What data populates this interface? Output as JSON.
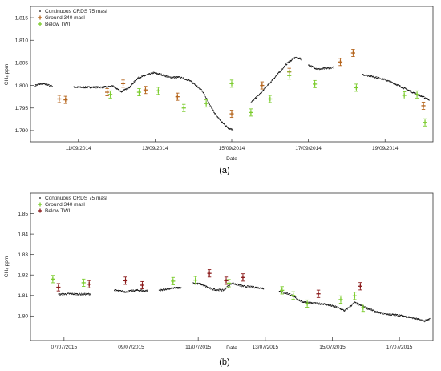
{
  "chart_data": [
    {
      "type": "scatter",
      "caption": "(a)",
      "xlabel": "Date",
      "ylabel": "CH₄ ppm",
      "x_range": [
        "2014-09-09T18:00",
        "2014-09-20T06:00"
      ],
      "ylim": [
        1.7875,
        1.8175
      ],
      "x_ticks": [
        "11/09/2014",
        "13/09/2014",
        "15/09/2014",
        "17/09/2014",
        "19/09/2014"
      ],
      "y_ticks": [
        1.79,
        1.795,
        1.8,
        1.805,
        1.81,
        1.815
      ],
      "y_tick_labels": [
        "1.790",
        "1.795",
        "1.800",
        "1.805",
        "1.810",
        "1.815"
      ],
      "grid": false,
      "legend_position": "top-left",
      "series": [
        {
          "name": "Continuous CRDS 75 masl",
          "color": "#111111",
          "style": "dense-points",
          "segments": [
            [
              [
                "2014-09-09T21:00",
                1.8
              ],
              [
                "2014-09-10T01:00",
                1.8004
              ],
              [
                "2014-09-10T05:00",
                1.8001
              ],
              [
                "2014-09-10T08:00",
                1.7998
              ]
            ],
            [
              [
                "2014-09-10T21:00",
                1.7996
              ],
              [
                "2014-09-11T08:00",
                1.7996
              ],
              [
                "2014-09-11T15:00",
                1.7996
              ],
              [
                "2014-09-11T22:00",
                1.7998
              ],
              [
                "2014-09-12T03:00",
                1.7986
              ],
              [
                "2014-09-12T08:00",
                1.7996
              ],
              [
                "2014-09-12T13:00",
                1.8016
              ],
              [
                "2014-09-12T18:00",
                1.8022
              ],
              [
                "2014-09-12T23:00",
                1.8028
              ],
              [
                "2014-09-13T04:00",
                1.8024
              ],
              [
                "2014-09-13T09:00",
                1.8018
              ],
              [
                "2014-09-13T15:00",
                1.8018
              ],
              [
                "2014-09-13T21:00",
                1.8012
              ],
              [
                "2014-09-14T02:00",
                1.8
              ],
              [
                "2014-09-14T06:00",
                1.7986
              ],
              [
                "2014-09-14T10:00",
                1.7958
              ],
              [
                "2014-09-14T14:00",
                1.7935
              ],
              [
                "2014-09-14T18:00",
                1.7918
              ],
              [
                "2014-09-14T22:00",
                1.7905
              ],
              [
                "2014-09-15T01:00",
                1.7902
              ]
            ],
            [
              [
                "2014-09-15T12:00",
                1.7962
              ],
              [
                "2014-09-15T18:00",
                1.7982
              ],
              [
                "2014-09-16T00:00",
                1.8006
              ],
              [
                "2014-09-16T06:00",
                1.803
              ],
              [
                "2014-09-16T11:00",
                1.805
              ],
              [
                "2014-09-16T16:00",
                1.8062
              ],
              [
                "2014-09-16T20:00",
                1.8058
              ]
            ],
            [
              [
                "2014-09-17T00:00",
                1.8045
              ],
              [
                "2014-09-17T06:00",
                1.8036
              ],
              [
                "2014-09-17T12:00",
                1.8038
              ],
              [
                "2014-09-17T16:00",
                1.804
              ]
            ],
            [
              [
                "2014-09-18T10:00",
                1.8024
              ],
              [
                "2014-09-18T16:00",
                1.802
              ],
              [
                "2014-09-18T23:00",
                1.8014
              ],
              [
                "2014-09-19T06:00",
                1.8004
              ],
              [
                "2014-09-19T13:00",
                1.7992
              ],
              [
                "2014-09-19T19:00",
                1.7982
              ],
              [
                "2014-09-20T04:00",
                1.7968
              ]
            ]
          ]
        },
        {
          "name": "Ground 340 masl",
          "color": "#b5651d",
          "marker": "cross-with-errorbar",
          "x": [
            "2014-09-10T12:00",
            "2014-09-10T16:00",
            "2014-09-11T18:00",
            "2014-09-12T04:00",
            "2014-09-12T18:00",
            "2014-09-13T14:00",
            "2014-09-15T00:00",
            "2014-09-15T19:00",
            "2014-09-16T12:00",
            "2014-09-17T20:00",
            "2014-09-18T04:00",
            "2014-09-20T00:00"
          ],
          "y": [
            1.797,
            1.7968,
            1.7985,
            1.8004,
            1.799,
            1.7975,
            1.7937,
            1.8,
            1.803,
            1.8052,
            1.8072,
            1.7955
          ]
        },
        {
          "name": "Below TWI",
          "color": "#7ccc2e",
          "marker": "cross-with-errorbar",
          "x": [
            "2014-09-11T20:00",
            "2014-09-12T14:00",
            "2014-09-13T02:00",
            "2014-09-13T18:00",
            "2014-09-14T08:00",
            "2014-09-15T00:00",
            "2014-09-15T12:00",
            "2014-09-16T00:00",
            "2014-09-16T12:00",
            "2014-09-17T04:00",
            "2014-09-18T06:00",
            "2014-09-19T12:00",
            "2014-09-19T20:00",
            "2014-09-20T01:00"
          ],
          "y": [
            1.798,
            1.7985,
            1.7988,
            1.795,
            1.796,
            1.8004,
            1.794,
            1.797,
            1.8022,
            1.8003,
            1.7995,
            1.7978,
            1.798,
            1.7918
          ]
        }
      ]
    },
    {
      "type": "scatter",
      "caption": "(b)",
      "xlabel": "Date",
      "ylabel": "CH₄ ppm",
      "x_range": [
        "2015-07-06T00:00",
        "2015-07-18T00:00"
      ],
      "ylim": [
        1.788,
        1.86
      ],
      "x_ticks": [
        "07/07/2015",
        "09/07/2015",
        "11/07/2015",
        "13/07/2015",
        "15/07/2015",
        "17/07/2015"
      ],
      "y_ticks": [
        1.8,
        1.81,
        1.82,
        1.83,
        1.84,
        1.85
      ],
      "y_tick_labels": [
        "1.80",
        "1.81",
        "1.82",
        "1.83",
        "1.84",
        "1.85"
      ],
      "grid": false,
      "legend_position": "top-left",
      "series": [
        {
          "name": "Continuous CRDS 75 masl",
          "color": "#111111",
          "style": "dense-points",
          "segments": [
            [
              [
                "2015-07-06T20:00",
                1.8105
              ],
              [
                "2015-07-07T04:00",
                1.8108
              ],
              [
                "2015-07-07T12:00",
                1.8106
              ],
              [
                "2015-07-07T19:00",
                1.8107
              ]
            ],
            [
              [
                "2015-07-08T12:00",
                1.8125
              ],
              [
                "2015-07-08T20:00",
                1.8118
              ],
              [
                "2015-07-09T04:00",
                1.8125
              ],
              [
                "2015-07-09T12:00",
                1.8122
              ]
            ],
            [
              [
                "2015-07-09T20:00",
                1.8125
              ],
              [
                "2015-07-10T06:00",
                1.8135
              ],
              [
                "2015-07-10T12:00",
                1.8138
              ]
            ],
            [
              [
                "2015-07-10T20:00",
                1.816
              ],
              [
                "2015-07-11T02:00",
                1.8155
              ],
              [
                "2015-07-11T10:00",
                1.813
              ],
              [
                "2015-07-11T18:00",
                1.8125
              ],
              [
                "2015-07-12T00:00",
                1.816
              ],
              [
                "2015-07-12T08:00",
                1.8145
              ],
              [
                "2015-07-12T16:00",
                1.814
              ],
              [
                "2015-07-12T23:00",
                1.8135
              ]
            ],
            [
              [
                "2015-07-13T10:00",
                1.812
              ],
              [
                "2015-07-13T18:00",
                1.8105
              ],
              [
                "2015-07-14T02:00",
                1.807
              ],
              [
                "2015-07-14T10:00",
                1.8062
              ],
              [
                "2015-07-14T18:00",
                1.8058
              ],
              [
                "2015-07-15T02:00",
                1.8045
              ],
              [
                "2015-07-15T09:00",
                1.8025
              ],
              [
                "2015-07-15T16:00",
                1.8065
              ],
              [
                "2015-07-16T00:00",
                1.804
              ],
              [
                "2015-07-16T08:00",
                1.8018
              ],
              [
                "2015-07-16T16:00",
                1.8008
              ],
              [
                "2015-07-17T00:00",
                1.8003
              ],
              [
                "2015-07-17T10:00",
                1.799
              ],
              [
                "2015-07-17T18:00",
                1.7975
              ],
              [
                "2015-07-17T22:00",
                1.7985
              ]
            ]
          ]
        },
        {
          "name": "Ground 340 masl",
          "color": "#7ccc2e",
          "marker": "cross-with-errorbar",
          "x": [
            "2015-07-06T16:00",
            "2015-07-07T14:00",
            "2015-07-10T06:00",
            "2015-07-10T22:00",
            "2015-07-11T22:00",
            "2015-07-13T12:00",
            "2015-07-13T20:00",
            "2015-07-14T06:00",
            "2015-07-15T06:00",
            "2015-07-15T16:00",
            "2015-07-15T22:00"
          ],
          "y": [
            1.818,
            1.8162,
            1.817,
            1.8175,
            1.816,
            1.8125,
            1.81,
            1.806,
            1.808,
            1.8098,
            1.804
          ]
        },
        {
          "name": "Below TWI",
          "color": "#8b1a1a",
          "marker": "cross-with-errorbar",
          "x": [
            "2015-07-06T20:00",
            "2015-07-07T18:00",
            "2015-07-08T20:00",
            "2015-07-09T08:00",
            "2015-07-11T08:00",
            "2015-07-11T20:00",
            "2015-07-12T08:00",
            "2015-07-14T14:00",
            "2015-07-15T20:00"
          ],
          "y": [
            1.814,
            1.8155,
            1.8172,
            1.815,
            1.8208,
            1.8172,
            1.8188,
            1.8108,
            1.8145
          ]
        }
      ]
    }
  ]
}
